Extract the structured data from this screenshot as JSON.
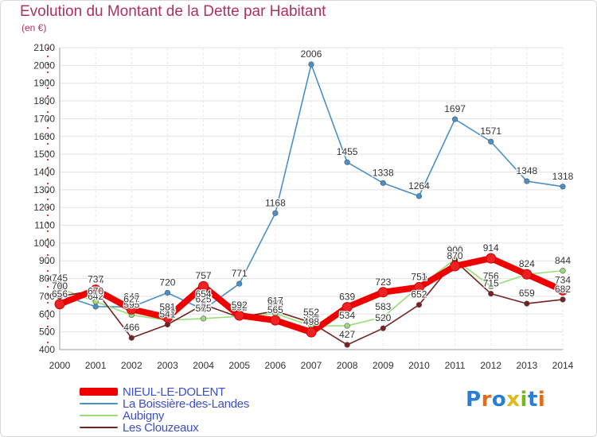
{
  "title": "Evolution du Montant de la Dette par Habitant",
  "subtitle": "(en €)",
  "brand": {
    "text": "Proxiti",
    "letter_colors": [
      "#2a7fd4",
      "#e36c1a",
      "#2a7fd4",
      "#e3b61a",
      "#7ab51d",
      "#2a7fd4",
      "#e36c1a"
    ]
  },
  "chart_data": {
    "type": "line",
    "x": [
      2000,
      2001,
      2002,
      2003,
      2004,
      2005,
      2006,
      2007,
      2008,
      2009,
      2010,
      2011,
      2012,
      2013,
      2014
    ],
    "ylim": [
      400,
      2100
    ],
    "yticks": [
      400,
      500,
      600,
      700,
      800,
      900,
      1000,
      1100,
      1200,
      1300,
      1400,
      1500,
      1600,
      1700,
      1800,
      1900,
      2000,
      2100
    ],
    "grid": true,
    "legend_position": "bottom-left",
    "series": [
      {
        "name": "NIEUL-LE-DOLENT",
        "color": "#ee0000",
        "values": [
          656,
          737,
          627,
          581,
          757,
          592,
          565,
          498,
          639,
          723,
          751,
          870,
          914,
          824,
          734
        ],
        "labels": [
          "656",
          "737",
          "627",
          "581",
          "757",
          "592",
          "565",
          "498",
          "639",
          "723",
          "751",
          "870",
          "914",
          "824",
          "734"
        ]
      },
      {
        "name": "La Boissière-des-Landes",
        "color": "#4a90c8",
        "values": [
          710,
          642,
          640,
          720,
          625,
          771,
          1168,
          2006,
          1455,
          1338,
          1264,
          1697,
          1571,
          1348,
          1318
        ],
        "labels": [
          "710",
          "642",
          "640",
          "720",
          "625",
          "771",
          "1168",
          "2006",
          "1455",
          "1338",
          "1264",
          "1697",
          "1571",
          "1348",
          "1318"
        ]
      },
      {
        "name": "Aubigny",
        "color": "#99dd77",
        "values": [
          745,
          670,
          595,
          565,
          575,
          587,
          603,
          534,
          534,
          583,
          755,
          908,
          756,
          824,
          844
        ],
        "labels": [
          "745",
          "670",
          "595",
          "565",
          "575",
          "587",
          "603",
          "534",
          "534",
          "583",
          "755",
          "908",
          "756",
          "824",
          "844"
        ]
      },
      {
        "name": "Les Clouzeaux",
        "color": "#772222",
        "values": [
          700,
          733,
          466,
          541,
          654,
          582,
          617,
          552,
          427,
          520,
          652,
          900,
          715,
          659,
          682
        ],
        "labels": [
          "700",
          "733",
          "466",
          "541",
          "654",
          "582",
          "617",
          "552",
          "427",
          "520",
          "652",
          "900",
          "715",
          "659",
          "682"
        ]
      }
    ]
  }
}
